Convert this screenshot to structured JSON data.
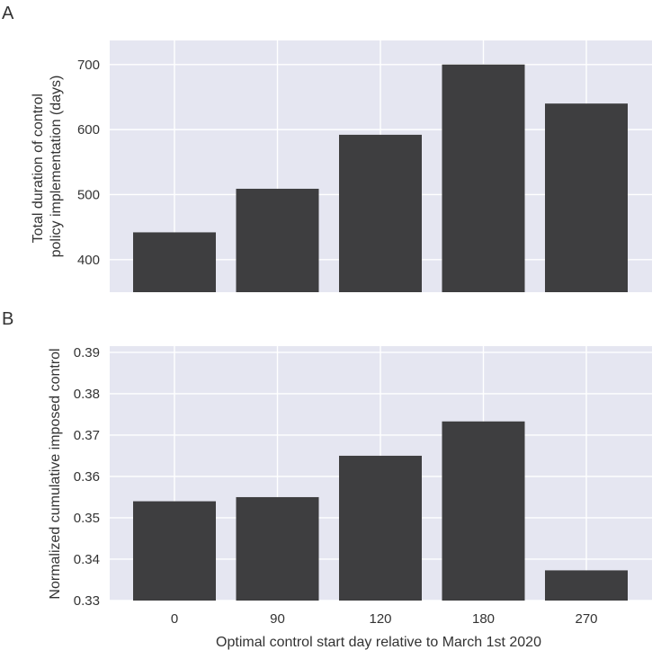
{
  "chart_data": [
    {
      "panel": "A",
      "type": "bar",
      "categories": [
        "0",
        "90",
        "120",
        "180",
        "270"
      ],
      "values": [
        442,
        509,
        592,
        700,
        640
      ],
      "ylabel": "Total duration of control policy implementation (days)",
      "ylabel_lines": [
        "Total duration of control",
        "policy implementation (days)"
      ],
      "ylim": [
        350,
        737
      ],
      "yticks": [
        400,
        500,
        600,
        700
      ],
      "ytick_labels": [
        "400",
        "500",
        "600",
        "700"
      ],
      "show_xticklabels": false,
      "grid": true
    },
    {
      "panel": "B",
      "type": "bar",
      "categories": [
        "0",
        "90",
        "120",
        "180",
        "270"
      ],
      "values": [
        0.354,
        0.355,
        0.365,
        0.3733,
        0.3373
      ],
      "ylabel": "Normalized cumulative imposed control",
      "ylim": [
        0.33,
        0.3915
      ],
      "yticks": [
        0.33,
        0.34,
        0.35,
        0.36,
        0.37,
        0.38,
        0.39
      ],
      "ytick_labels": [
        "0.33",
        "0.34",
        "0.35",
        "0.36",
        "0.37",
        "0.38",
        "0.39"
      ],
      "xlabel": "Optimal control start day relative to March 1st 2020",
      "show_xticklabels": true,
      "grid": true
    }
  ],
  "colors": {
    "bar": "#3e3e40",
    "background": "#e5e6f1",
    "grid": "#ffffff",
    "text": "#333333"
  }
}
